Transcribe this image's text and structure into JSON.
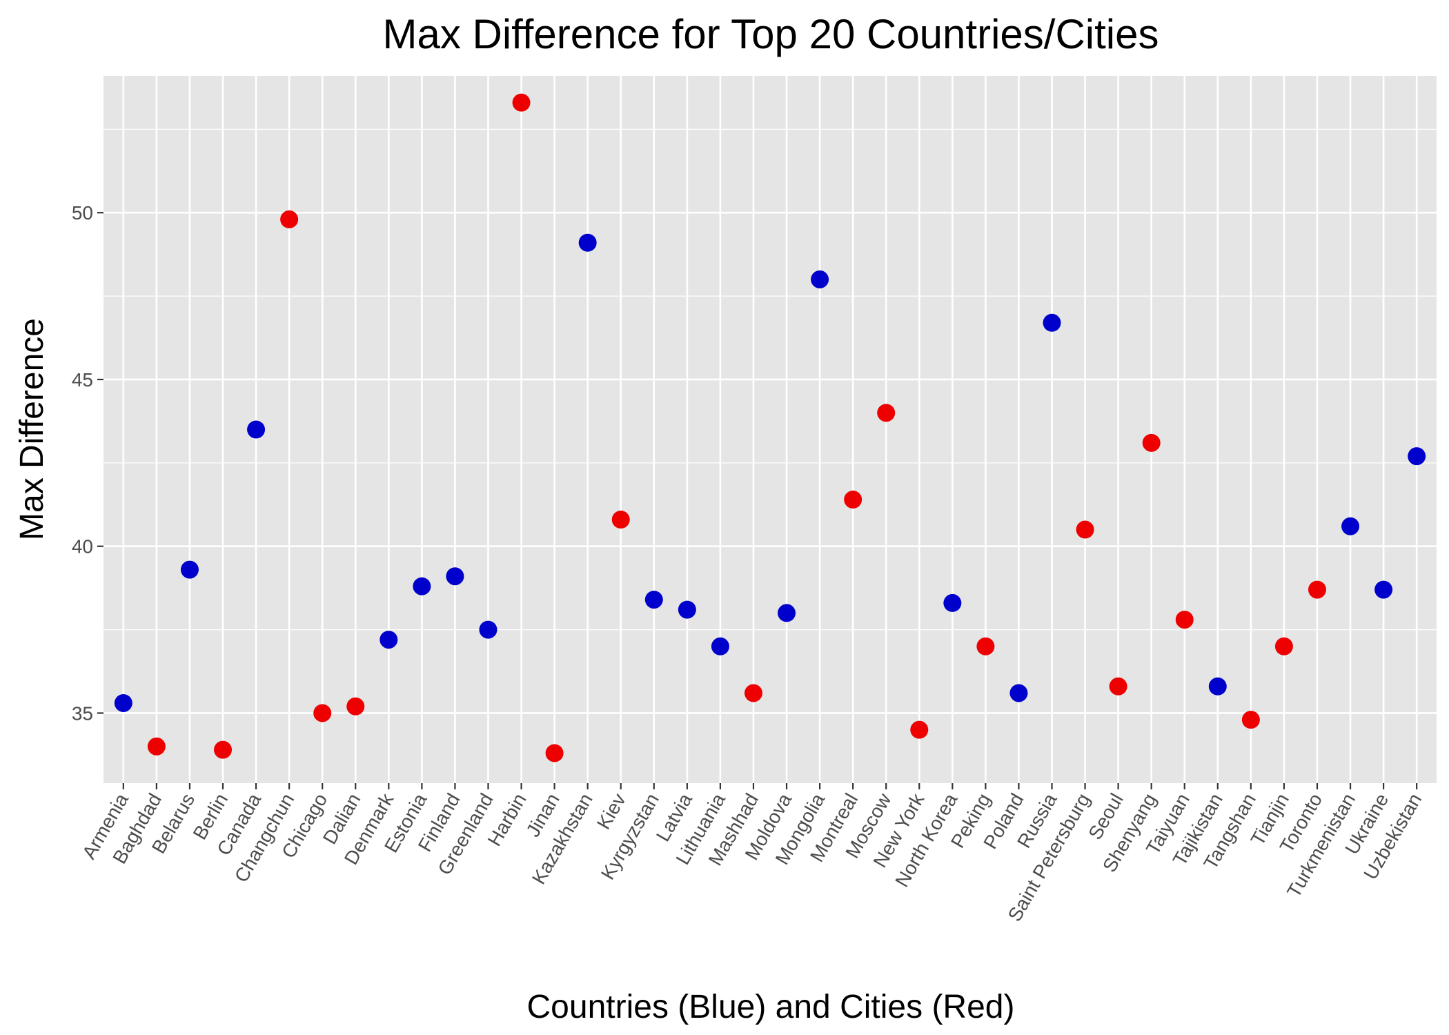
{
  "chart_data": {
    "type": "scatter",
    "title": "Max Difference for Top 20 Countries/Cities",
    "xlabel": "Countries (Blue) and Cities (Red)",
    "ylabel": "Max Difference",
    "ylim": [
      32.9,
      54.1
    ],
    "yticks": [
      35,
      40,
      45,
      50
    ],
    "grid": true,
    "colors": {
      "country": "#0000CC",
      "city": "#EE0000",
      "panel": "#E5E5E5",
      "grid": "#FFFFFF"
    },
    "categories": [
      "Armenia",
      "Baghdad",
      "Belarus",
      "Berlin",
      "Canada",
      "Changchun",
      "Chicago",
      "Dalian",
      "Denmark",
      "Estonia",
      "Finland",
      "Greenland",
      "Harbin",
      "Jinan",
      "Kazakhstan",
      "Kiev",
      "Kyrgyzstan",
      "Latvia",
      "Lithuania",
      "Mashhad",
      "Moldova",
      "Mongolia",
      "Montreal",
      "Moscow",
      "New York",
      "North Korea",
      "Peking",
      "Poland",
      "Russia",
      "Saint Petersburg",
      "Seoul",
      "Shenyang",
      "Taiyuan",
      "Tajikistan",
      "Tangshan",
      "Tianjin",
      "Toronto",
      "Turkmenistan",
      "Ukraine",
      "Uzbekistan"
    ],
    "values": [
      35.3,
      34.0,
      39.3,
      33.9,
      43.5,
      49.8,
      35.0,
      35.2,
      37.2,
      38.8,
      39.1,
      37.5,
      53.3,
      33.8,
      49.1,
      40.8,
      38.4,
      38.1,
      37.0,
      35.6,
      38.0,
      48.0,
      41.4,
      44.0,
      34.5,
      38.3,
      37.0,
      35.6,
      46.7,
      40.5,
      35.8,
      43.1,
      37.8,
      35.8,
      34.8,
      37.0,
      38.7,
      40.6,
      38.7,
      42.7
    ],
    "group": [
      "country",
      "city",
      "country",
      "city",
      "country",
      "city",
      "city",
      "city",
      "country",
      "country",
      "country",
      "country",
      "city",
      "city",
      "country",
      "city",
      "country",
      "country",
      "country",
      "city",
      "country",
      "country",
      "city",
      "city",
      "city",
      "country",
      "city",
      "country",
      "country",
      "city",
      "city",
      "city",
      "city",
      "country",
      "city",
      "city",
      "city",
      "country",
      "country",
      "country"
    ]
  }
}
